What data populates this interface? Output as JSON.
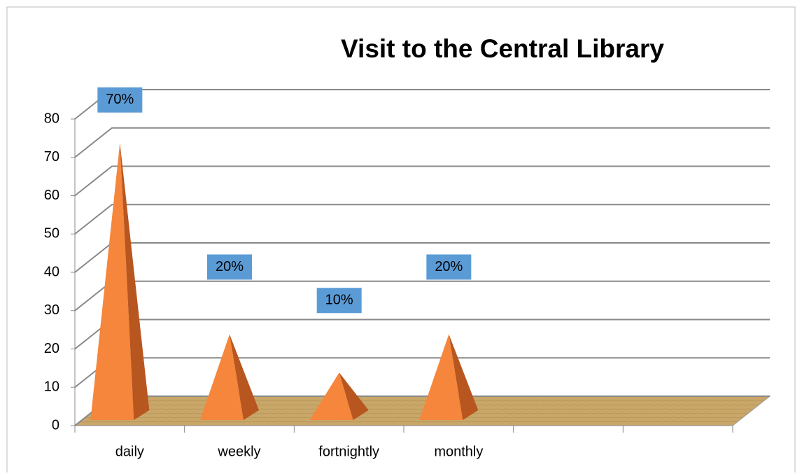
{
  "chart_data": {
    "type": "pyramid3d",
    "title": "Visit to the Central Library",
    "categories": [
      "daily",
      "weekly",
      "fortnightly",
      "monthly",
      null,
      null
    ],
    "values": [
      70,
      20,
      10,
      20,
      null,
      null
    ],
    "value_labels": [
      "70%",
      "20%",
      "10%",
      "20%",
      null,
      null
    ],
    "color": "#f5863b",
    "label_color": "#5b9bd5",
    "ylim": [
      0,
      80
    ],
    "yticks": [
      0,
      10,
      20,
      30,
      40,
      50,
      60,
      70,
      80
    ],
    "grid": true
  }
}
